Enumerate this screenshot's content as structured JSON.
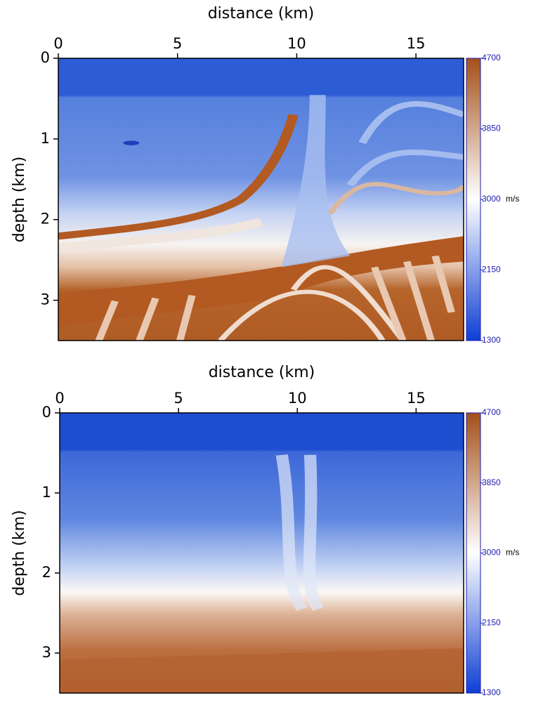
{
  "chart_data": [
    {
      "type": "heatmap",
      "x_label": "distance (km)",
      "y_label": "depth (km)",
      "xlim": [
        0,
        17
      ],
      "xticks": [
        0,
        5,
        10,
        15
      ],
      "ylim": [
        0,
        3.5
      ],
      "yticks": [
        0,
        1,
        2,
        3
      ],
      "colorbar": {
        "lim": [
          1300,
          4700
        ],
        "ticks": [
          1300,
          2150,
          3000,
          3850,
          4700
        ],
        "label": "m/s",
        "colors": [
          "#0d3fd4",
          "#ffffff",
          "#a4501a"
        ]
      }
    },
    {
      "type": "heatmap",
      "x_label": "distance (km)",
      "y_label": "depth (km)",
      "xlim": [
        0,
        17
      ],
      "xticks": [
        0,
        5,
        10,
        15
      ],
      "ylim": [
        0,
        3.5
      ],
      "yticks": [
        0,
        1,
        2,
        3
      ],
      "colorbar": {
        "lim": [
          1300,
          4700
        ],
        "ticks": [
          1300,
          2150,
          3000,
          3850,
          4700
        ],
        "label": "m/s",
        "colors": [
          "#0d3fd4",
          "#ffffff",
          "#a4501a"
        ]
      }
    }
  ]
}
